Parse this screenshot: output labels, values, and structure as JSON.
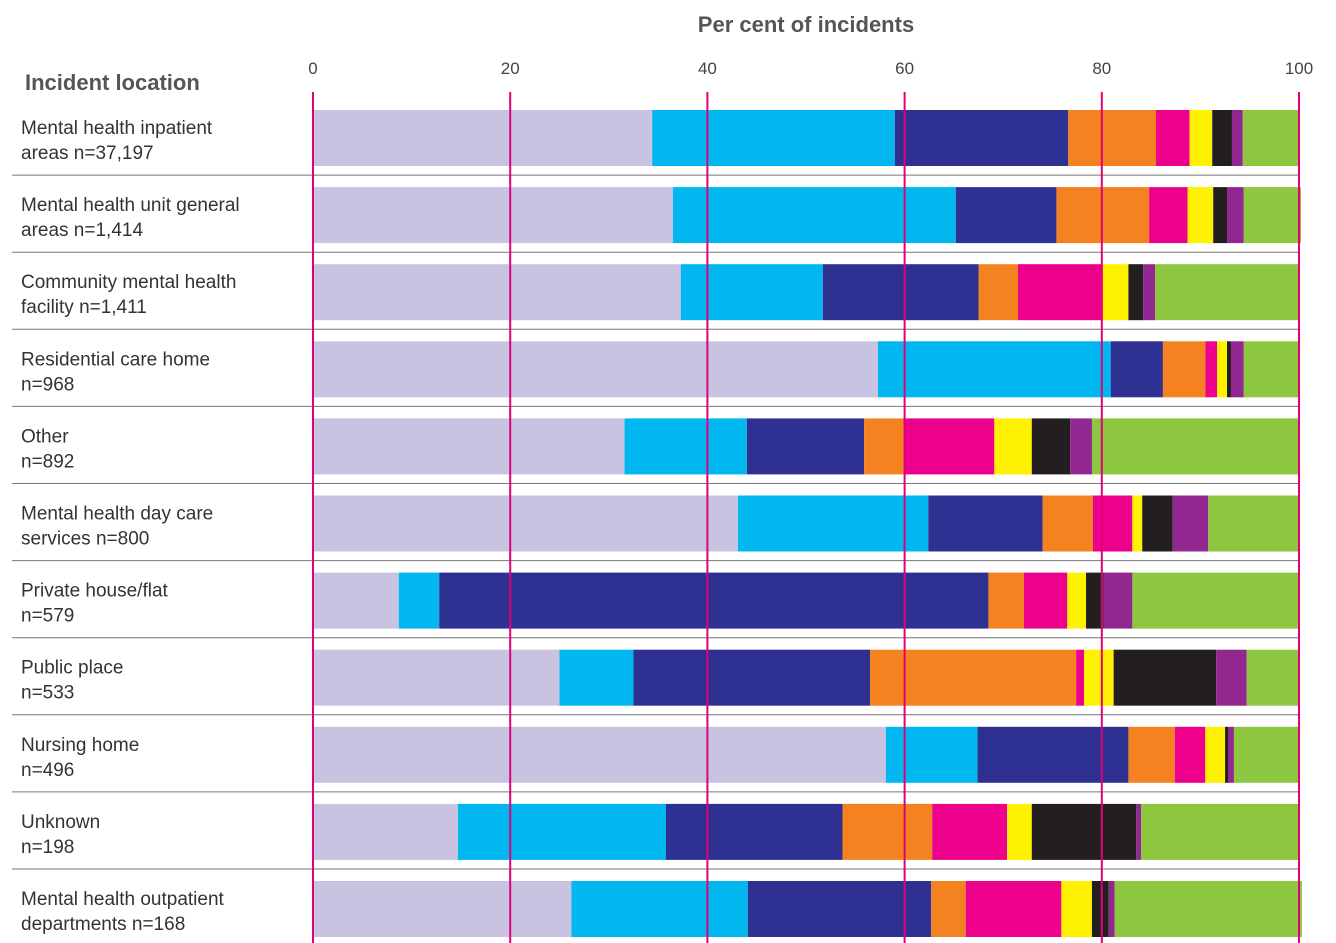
{
  "chart_data": {
    "type": "bar",
    "orientation": "horizontal",
    "stacked": true,
    "title": "Per cent of incidents",
    "ylabel": "Incident location",
    "xlim": [
      0,
      100
    ],
    "ticks": [
      "0",
      "20",
      "40",
      "60",
      "80",
      "100"
    ],
    "grid": true,
    "legend": "none",
    "categories": [
      [
        "Mental health inpatient",
        "areas n=37,197"
      ],
      [
        "Mental health unit general",
        "areas n=1,414"
      ],
      [
        "Community mental health",
        "facility n=1,411"
      ],
      [
        "Residential care home",
        "n=968"
      ],
      [
        "Other",
        "n=892"
      ],
      [
        "Mental health day care",
        "services n=800"
      ],
      [
        "Private house/flat",
        "n=579"
      ],
      [
        "Public place",
        "n=533"
      ],
      [
        "Nursing home",
        "n=496"
      ],
      [
        "Unknown",
        "n=198"
      ],
      [
        "Mental health outpatient",
        "departments n=168"
      ]
    ],
    "series": [
      {
        "color": "#c9c3e1",
        "values": [
          34.4,
          36.5,
          37.3,
          57.3,
          31.6,
          43.1,
          8.7,
          25.0,
          58.1,
          14.7,
          26.2
        ]
      },
      {
        "color": "#00b8ef",
        "values": [
          24.6,
          28.7,
          14.4,
          23.6,
          12.4,
          19.3,
          4.1,
          7.5,
          9.3,
          21.1,
          17.9
        ]
      },
      {
        "color": "#2e3192",
        "values": [
          17.6,
          10.2,
          15.8,
          5.3,
          11.9,
          11.6,
          55.7,
          24.0,
          15.3,
          17.9,
          18.6
        ]
      },
      {
        "color": "#f58220",
        "values": [
          8.9,
          9.4,
          4.0,
          4.3,
          4.0,
          5.1,
          3.6,
          20.9,
          4.7,
          9.1,
          3.5
        ]
      },
      {
        "color": "#ec008c",
        "values": [
          3.4,
          3.9,
          8.6,
          1.2,
          9.2,
          4.0,
          4.4,
          0.8,
          3.1,
          7.6,
          9.7
        ]
      },
      {
        "color": "#fff200",
        "values": [
          2.3,
          2.6,
          2.6,
          1.0,
          3.8,
          1.0,
          1.9,
          3.0,
          2.0,
          2.5,
          3.1
        ]
      },
      {
        "color": "#231f20",
        "values": [
          2.0,
          1.4,
          1.5,
          0.4,
          3.9,
          3.1,
          1.8,
          10.4,
          0.3,
          10.6,
          1.7
        ]
      },
      {
        "color": "#92278f",
        "values": [
          1.1,
          1.7,
          1.2,
          1.3,
          2.2,
          3.6,
          2.9,
          3.1,
          0.6,
          0.5,
          0.6
        ]
      },
      {
        "color": "#8dc63f",
        "values": [
          5.7,
          5.8,
          14.6,
          5.6,
          21.0,
          9.2,
          16.9,
          5.3,
          6.6,
          16.0,
          19.0
        ]
      }
    ]
  }
}
